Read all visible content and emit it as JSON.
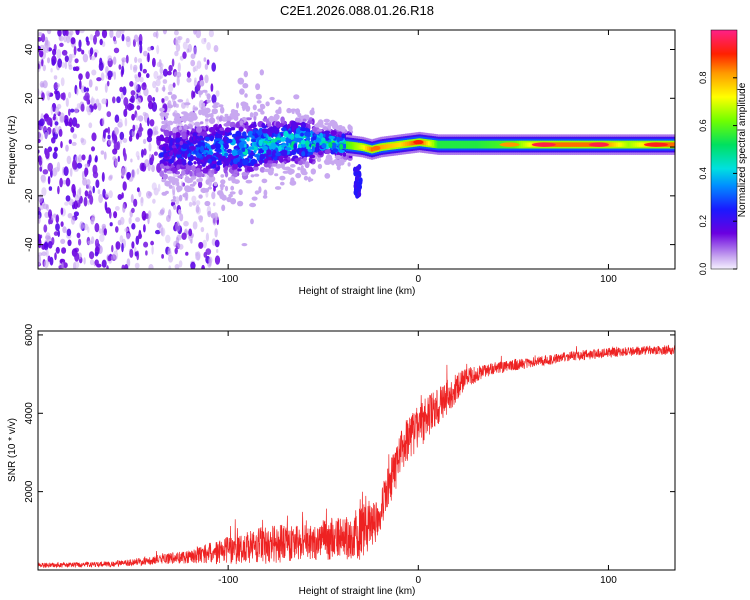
{
  "title": "C2E1.2026.088.01.26.R18",
  "chart_data": [
    {
      "type": "heatmap",
      "title": "C2E1.2026.088.01.26.R18",
      "xlabel": "Height of straight line (km)",
      "ylabel": "Frequency (Hz)",
      "xlim": [
        -200,
        135
      ],
      "ylim": [
        -50,
        48
      ],
      "xticks": [
        -100,
        0,
        100
      ],
      "xtick_labels": [
        "-100",
        "0",
        "100"
      ],
      "yticks": [
        -40,
        -20,
        0,
        20,
        40
      ],
      "ytick_labels": [
        "-40",
        "-20",
        "0",
        "20",
        "40"
      ],
      "colorbar": {
        "label": "Normalized spectral amplitude",
        "range": [
          0,
          1
        ],
        "ticks": [
          0,
          0.2,
          0.4,
          0.6,
          0.8
        ],
        "tick_labels": [
          "0.0",
          "0.2",
          "0.4",
          "0.6",
          "0.8"
        ]
      },
      "ridge": {
        "description_points_x": [
          -130,
          -110,
          -90,
          -70,
          -50,
          -40,
          -30,
          -25,
          -20,
          -10,
          0,
          10,
          30,
          50,
          70,
          90,
          110,
          135
        ],
        "center_freq_hz": [
          -2,
          -1,
          0,
          2,
          2,
          1,
          0,
          -1,
          0,
          1,
          2,
          1,
          1,
          1,
          1,
          1,
          1,
          1
        ],
        "peak_amplitude": [
          0.25,
          0.35,
          0.45,
          0.5,
          0.5,
          0.55,
          0.7,
          0.85,
          0.8,
          0.75,
          0.9,
          0.55,
          0.55,
          0.6,
          0.9,
          0.95,
          0.65,
          0.92
        ]
      },
      "side_feature": {
        "x": -32,
        "freq_range": [
          -20,
          -8
        ]
      }
    },
    {
      "type": "line",
      "xlabel": "Height of straight line (km)",
      "ylabel": "SNR (10 * v/v)",
      "xlim": [
        -200,
        135
      ],
      "ylim": [
        0,
        6100
      ],
      "xticks": [
        -100,
        0,
        100
      ],
      "xtick_labels": [
        "-100",
        "0",
        "100"
      ],
      "yticks": [
        2000,
        4000,
        6000
      ],
      "ytick_labels": [
        "2000",
        "4000",
        "6000"
      ],
      "color": "#ee2222",
      "envelope": {
        "x": [
          -200,
          -160,
          -140,
          -120,
          -100,
          -80,
          -60,
          -40,
          -30,
          -22,
          -18,
          -12,
          -5,
          5,
          15,
          25,
          40,
          60,
          80,
          100,
          120,
          135
        ],
        "mean": [
          120,
          150,
          250,
          350,
          500,
          650,
          700,
          800,
          950,
          1300,
          1800,
          2600,
          3400,
          3900,
          4400,
          4900,
          5150,
          5300,
          5450,
          5550,
          5600,
          5620
        ],
        "noise": [
          60,
          70,
          110,
          180,
          350,
          500,
          450,
          550,
          700,
          600,
          500,
          600,
          600,
          550,
          450,
          250,
          150,
          130,
          130,
          130,
          120,
          120
        ]
      }
    }
  ]
}
